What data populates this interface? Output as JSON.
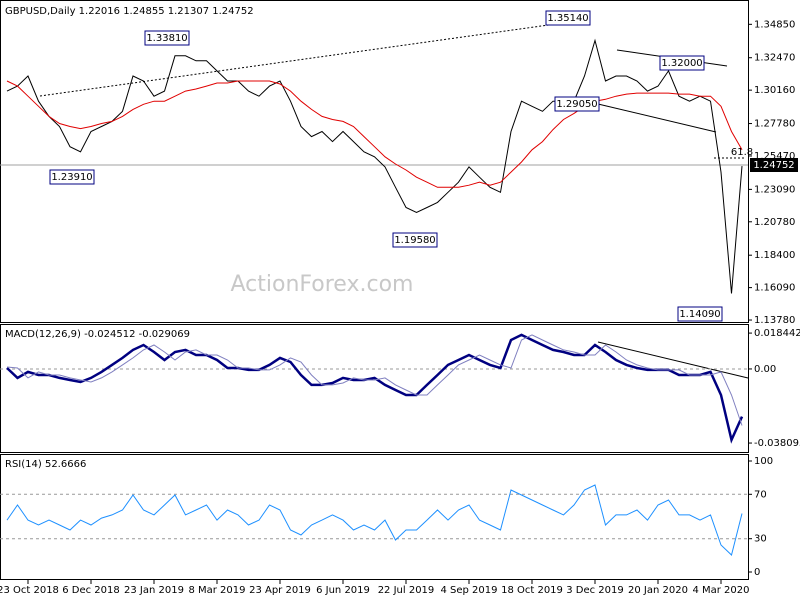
{
  "chart_data": [
    {
      "type": "line",
      "title": "GBPUSD,Daily  1.22016 1.24855 1.21307 1.24752",
      "watermark": "ActionForex.com",
      "ylim": [
        1.1364,
        1.3644
      ],
      "yticks": [
        {
          "value": 1.3485,
          "label": "1.34850"
        },
        {
          "value": 1.3247,
          "label": "1.32470"
        },
        {
          "value": 1.3016,
          "label": "1.30160"
        },
        {
          "value": 1.2778,
          "label": "1.27780"
        },
        {
          "value": 1.2547,
          "label": "1.25470"
        },
        {
          "value": 1.2309,
          "label": "1.23090"
        },
        {
          "value": 1.2078,
          "label": "1.20780"
        },
        {
          "value": 1.184,
          "label": "1.18400"
        },
        {
          "value": 1.1609,
          "label": "1.16090"
        },
        {
          "value": 1.1378,
          "label": "1.13780"
        }
      ],
      "series": [
        {
          "color": "#000000",
          "values": [
            1.3009,
            1.3045,
            1.3117,
            1.2937,
            1.2829,
            1.2757,
            1.2613,
            1.2577,
            1.2721,
            1.2757,
            1.2793,
            1.2865,
            1.3117,
            1.3081,
            1.2973,
            1.3009,
            1.3261,
            1.3261,
            1.3225,
            1.3225,
            1.3153,
            1.3081,
            1.3081,
            1.3009,
            1.2973,
            1.3045,
            1.3081,
            1.2937,
            1.2757,
            1.2685,
            1.2721,
            1.2649,
            1.2721,
            1.2649,
            1.2577,
            1.2541,
            1.2469,
            1.2324,
            1.218,
            1.2144,
            1.218,
            1.2216,
            1.2288,
            1.236,
            1.2469,
            1.2396,
            1.2324,
            1.2288,
            1.2721,
            1.2937,
            1.2901,
            1.2865,
            1.2937,
            1.2937,
            1.2937,
            1.3117,
            1.337,
            1.3081,
            1.3117,
            1.3117,
            1.3081,
            1.3009,
            1.3045,
            1.3153,
            1.2973,
            1.2937,
            1.2973,
            1.2937,
            1.2432,
            1.1567,
            1.2475
          ]
        },
        {
          "color": "#e00000",
          "values": [
            1.3081,
            1.3045,
            1.2973,
            1.2901,
            1.2829,
            1.2778,
            1.2757,
            1.2742,
            1.2757,
            1.2778,
            1.2793,
            1.2829,
            1.2879,
            1.2915,
            1.2937,
            1.2937,
            1.2973,
            1.3009,
            1.3024,
            1.3045,
            1.3067,
            1.3067,
            1.3081,
            1.3081,
            1.3081,
            1.3081,
            1.306,
            1.3009,
            1.2937,
            1.2879,
            1.2829,
            1.2807,
            1.2793,
            1.2757,
            1.2685,
            1.2613,
            1.2541,
            1.249,
            1.2447,
            1.2396,
            1.236,
            1.2324,
            1.2324,
            1.2324,
            1.2339,
            1.236,
            1.2339,
            1.236,
            1.2432,
            1.2504,
            1.2591,
            1.2649,
            1.2735,
            1.2807,
            1.285,
            1.2901,
            1.2937,
            1.2951,
            1.2973,
            1.2988,
            1.2995,
            1.2995,
            1.2995,
            1.2995,
            1.2988,
            1.2988,
            1.2973,
            1.2973,
            1.2901,
            1.2721,
            1.2591
          ]
        }
      ],
      "annotations": [
        "1.35140",
        "1.33810",
        "1.32000",
        "1.29050",
        "1.23910",
        "1.19580",
        "1.14090",
        "61.8",
        "1.24752"
      ]
    },
    {
      "type": "line",
      "title": "MACD(12,26,9) -0.024512 -0.029069",
      "ylim": [
        -0.0427,
        0.0226
      ],
      "yticks": [
        0.018442,
        {
          "value": 0,
          "label": "0.00"
        },
        -0.038095
      ],
      "reference_lines": [
        0
      ],
      "series": [
        {
          "color": "#000080",
          "values": [
            0.0005,
            -0.0046,
            -0.0015,
            -0.0031,
            -0.0031,
            -0.0046,
            -0.0057,
            -0.0067,
            -0.0046,
            -0.0015,
            0.0021,
            0.0057,
            0.0098,
            0.0123,
            0.0087,
            0.0046,
            0.0087,
            0.0098,
            0.0072,
            0.0072,
            0.0046,
            0.0005,
            0.0005,
            -0.0005,
            -0.0005,
            0.0021,
            0.0057,
            0.0036,
            -0.0031,
            -0.0082,
            -0.0082,
            -0.0072,
            -0.0046,
            -0.0057,
            -0.0057,
            -0.0046,
            -0.0082,
            -0.0108,
            -0.0134,
            -0.0134,
            -0.0082,
            -0.0031,
            0.0021,
            0.0046,
            0.0072,
            0.0046,
            0.0021,
            0.0005,
            0.0149,
            0.0175,
            0.0149,
            0.0123,
            0.0098,
            0.0087,
            0.0072,
            0.0072,
            0.0123,
            0.0087,
            0.0046,
            0.0021,
            0.0005,
            -0.0005,
            -0.0005,
            -0.0005,
            -0.0031,
            -0.0031,
            -0.0031,
            -0.0015,
            -0.0134,
            -0.0365,
            -0.0245
          ]
        },
        {
          "color": "#8080c0",
          "values": [
            0.001,
            0.0005,
            -0.0046,
            -0.0015,
            -0.0031,
            -0.0031,
            -0.0046,
            -0.0057,
            -0.0067,
            -0.0046,
            -0.0015,
            0.0021,
            0.0057,
            0.0098,
            0.0123,
            0.0087,
            0.0046,
            0.0087,
            0.0098,
            0.0072,
            0.0072,
            0.0046,
            0.0005,
            0.0005,
            -0.0005,
            -0.0005,
            0.0021,
            0.0057,
            0.0036,
            -0.0031,
            -0.0082,
            -0.0082,
            -0.0072,
            -0.0046,
            -0.0057,
            -0.0057,
            -0.0046,
            -0.0082,
            -0.0108,
            -0.0134,
            -0.0134,
            -0.0082,
            -0.0031,
            0.0021,
            0.0046,
            0.0072,
            0.0046,
            0.0021,
            0.0005,
            0.0149,
            0.0175,
            0.0149,
            0.0123,
            0.0098,
            0.0087,
            0.0072,
            0.0072,
            0.0123,
            0.0087,
            0.0046,
            0.0021,
            0.0005,
            -0.0005,
            -0.0005,
            -0.0005,
            -0.0031,
            -0.0031,
            -0.0031,
            -0.0015,
            -0.0134,
            -0.0291
          ]
        }
      ]
    },
    {
      "type": "line",
      "title": "RSI(14) 52.6666",
      "ylim": [
        -7.2,
        105.4
      ],
      "yticks": [
        100,
        70,
        30,
        0
      ],
      "reference_lines": [
        70,
        30
      ],
      "categories": [
        null,
        null,
        "23 Oct 2018",
        null,
        null,
        null,
        null,
        null,
        "6 Dec 2018",
        null,
        null,
        null,
        null,
        null,
        "23 Jan 2019",
        null,
        null,
        null,
        null,
        null,
        "8 Mar 2019",
        null,
        null,
        null,
        null,
        null,
        "23 Apr 2019",
        null,
        null,
        null,
        null,
        null,
        "6 Jun 2019",
        null,
        null,
        null,
        null,
        null,
        "22 Jul 2019",
        null,
        null,
        null,
        null,
        null,
        "4 Sep 2019",
        null,
        null,
        null,
        null,
        null,
        "18 Oct 2019",
        null,
        null,
        null,
        null,
        null,
        "3 Dec 2019",
        null,
        null,
        null,
        null,
        null,
        "20 Jan 2020",
        null,
        null,
        null,
        null,
        null,
        "4 Mar 2020",
        null,
        null
      ],
      "series": [
        {
          "color": "#1e90ff",
          "values": [
            46.8,
            60.4,
            46.8,
            42.3,
            46.8,
            42.3,
            37.8,
            46.8,
            42.3,
            48.6,
            51.4,
            55.9,
            69.4,
            55.9,
            51.4,
            60.4,
            69.4,
            51.4,
            55.9,
            60.4,
            46.8,
            55.9,
            51.4,
            42.3,
            46.8,
            60.4,
            55.9,
            37.8,
            33.3,
            42.3,
            46.8,
            51.4,
            46.8,
            37.8,
            42.3,
            37.8,
            46.8,
            28.8,
            37.8,
            37.8,
            46.8,
            55.9,
            46.8,
            55.9,
            60.4,
            46.8,
            42.3,
            37.8,
            73.9,
            69.4,
            64.9,
            60.4,
            55.9,
            51.4,
            60.4,
            73.9,
            78.4,
            42.3,
            51.4,
            51.4,
            55.9,
            46.8,
            60.4,
            64.9,
            51.4,
            51.4,
            46.8,
            51.4,
            24.3,
            15.3,
            52.7
          ]
        }
      ]
    }
  ]
}
